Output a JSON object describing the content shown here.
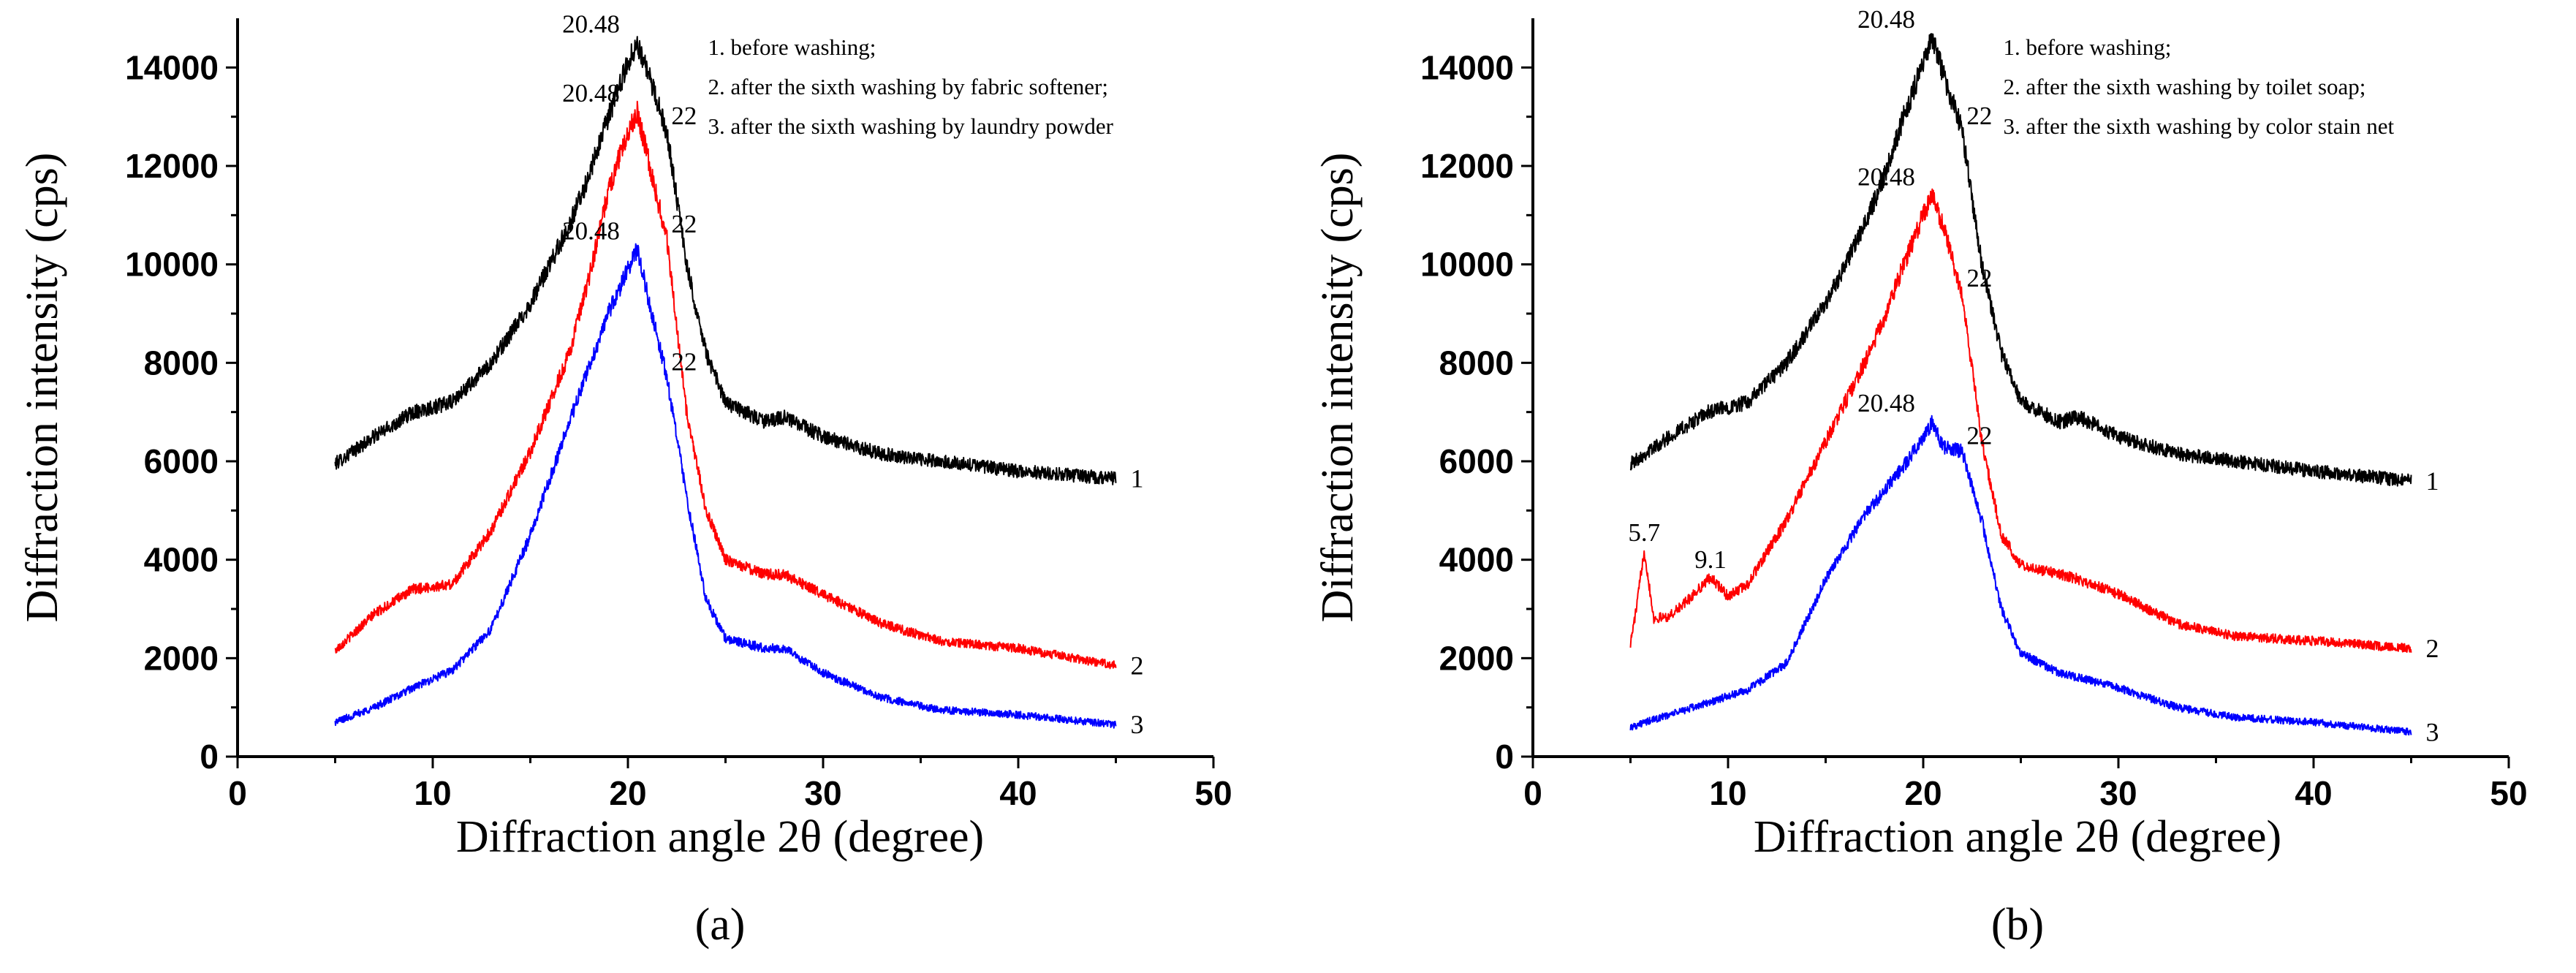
{
  "chart_data": [
    {
      "type": "line",
      "panel_label": "(a)",
      "xlabel": "Diffraction angle 2θ (degree)",
      "ylabel": "Diffraction intensity (cps)",
      "xlim": [
        0,
        50
      ],
      "ylim": [
        0,
        15000
      ],
      "xticks": [
        0,
        10,
        20,
        30,
        40,
        50
      ],
      "yticks": [
        0,
        2000,
        4000,
        6000,
        8000,
        10000,
        12000,
        14000
      ],
      "legend": {
        "placement": "top-right",
        "entries": [
          "1. before washing;",
          "2. after the sixth washing by fabric softener;",
          "3. after the sixth washing by laundry powder"
        ]
      },
      "series": [
        {
          "name": "1",
          "color": "#000000",
          "x": [
            5,
            7,
            9,
            11,
            13,
            15,
            17,
            18,
            19,
            20,
            20.48,
            21,
            22,
            23,
            24,
            25,
            27,
            28,
            30,
            33,
            36,
            40,
            45
          ],
          "y": [
            5950,
            6500,
            7000,
            7200,
            8000,
            9200,
            10800,
            11800,
            13000,
            14100,
            14500,
            13900,
            12700,
            10000,
            8200,
            7200,
            6800,
            6900,
            6500,
            6150,
            6000,
            5800,
            5650
          ]
        },
        {
          "name": "2",
          "color": "#ff0000",
          "x": [
            5,
            7,
            9,
            11,
            13,
            15,
            17,
            18,
            19,
            20,
            20.48,
            21,
            22,
            23,
            24,
            25,
            27,
            28,
            30,
            33,
            36,
            40,
            45
          ],
          "y": [
            2150,
            2900,
            3400,
            3500,
            4600,
            6200,
            8200,
            9700,
            11500,
            12700,
            13100,
            12200,
            10500,
            7000,
            5000,
            4000,
            3700,
            3700,
            3300,
            2700,
            2350,
            2200,
            1850
          ]
        },
        {
          "name": "3",
          "color": "#0000ff",
          "x": [
            5,
            7,
            9,
            11,
            13,
            15,
            17,
            18,
            19,
            20,
            20.48,
            21,
            22,
            23,
            24,
            25,
            27,
            28,
            30,
            33,
            36,
            40,
            45
          ],
          "y": [
            700,
            1000,
            1400,
            1750,
            2600,
            4500,
            6800,
            7900,
            9000,
            9900,
            10300,
            9400,
            7700,
            5300,
            3200,
            2400,
            2200,
            2200,
            1700,
            1200,
            950,
            850,
            650
          ]
        }
      ],
      "annotations": [
        {
          "text": "20.48",
          "x": 20.48,
          "y": 14500
        },
        {
          "text": "22",
          "x": 22,
          "y": 12700
        },
        {
          "text": "20.48",
          "x": 20.48,
          "y": 13100
        },
        {
          "text": "22",
          "x": 22,
          "y": 10500
        },
        {
          "text": "20.48",
          "x": 20.48,
          "y": 10300
        },
        {
          "text": "22",
          "x": 22,
          "y": 7700
        }
      ]
    },
    {
      "type": "line",
      "panel_label": "(b)",
      "xlabel": "Diffraction angle 2θ (degree)",
      "ylabel": "Diffraction intensity (cps)",
      "xlim": [
        0,
        50
      ],
      "ylim": [
        0,
        15000
      ],
      "xticks": [
        0,
        10,
        20,
        30,
        40,
        50
      ],
      "yticks": [
        0,
        2000,
        4000,
        6000,
        8000,
        10000,
        12000,
        14000
      ],
      "legend": {
        "placement": "top-right",
        "entries": [
          "1. before washing;",
          "2. after the sixth washing by toilet soap;",
          "3. after the sixth washing by color stain net"
        ]
      },
      "series": [
        {
          "name": "1",
          "color": "#000000",
          "x": [
            5,
            7,
            9,
            11,
            13,
            15,
            17,
            18,
            19,
            20,
            20.48,
            21,
            22,
            23,
            24,
            25,
            27,
            28,
            30,
            33,
            36,
            40,
            45
          ],
          "y": [
            5950,
            6500,
            7000,
            7200,
            8000,
            9200,
            10800,
            11800,
            13000,
            14100,
            14600,
            13900,
            12700,
            10000,
            8200,
            7200,
            6800,
            6900,
            6500,
            6150,
            6000,
            5800,
            5600
          ]
        },
        {
          "name": "2",
          "color": "#ff0000",
          "x": [
            5,
            5.3,
            5.7,
            6.2,
            7,
            8,
            9.1,
            10,
            11,
            13,
            15,
            17,
            18,
            19,
            20,
            20.48,
            21,
            22,
            23,
            24,
            25,
            27,
            28,
            30,
            33,
            36,
            40,
            45
          ],
          "y": [
            2300,
            3000,
            4200,
            2800,
            2850,
            3200,
            3650,
            3250,
            3500,
            4800,
            6400,
            8000,
            8900,
            10000,
            11000,
            11400,
            10800,
            9400,
            6400,
            4500,
            3900,
            3700,
            3600,
            3300,
            2700,
            2450,
            2350,
            2200
          ]
        },
        {
          "name": "3",
          "color": "#0000ff",
          "x": [
            5,
            7,
            9,
            11,
            13,
            15,
            17,
            18,
            19,
            20,
            20.48,
            21,
            22,
            23,
            24,
            25,
            27,
            30,
            33,
            36,
            40,
            45
          ],
          "y": [
            600,
            850,
            1100,
            1350,
            1900,
            3600,
            4900,
            5400,
            5900,
            6500,
            6800,
            6300,
            6200,
            4800,
            3000,
            2100,
            1700,
            1400,
            1000,
            800,
            700,
            500
          ]
        }
      ],
      "annotations": [
        {
          "text": "20.48",
          "x": 20.48,
          "y": 14600
        },
        {
          "text": "22",
          "x": 22,
          "y": 12700
        },
        {
          "text": "20.48",
          "x": 20.48,
          "y": 11400
        },
        {
          "text": "22",
          "x": 22,
          "y": 9400
        },
        {
          "text": "20.48",
          "x": 20.48,
          "y": 6800
        },
        {
          "text": "22",
          "x": 22,
          "y": 6200
        },
        {
          "text": "5.7",
          "x": 5.7,
          "y": 4200
        },
        {
          "text": "9.1",
          "x": 9.1,
          "y": 3650
        }
      ]
    }
  ]
}
